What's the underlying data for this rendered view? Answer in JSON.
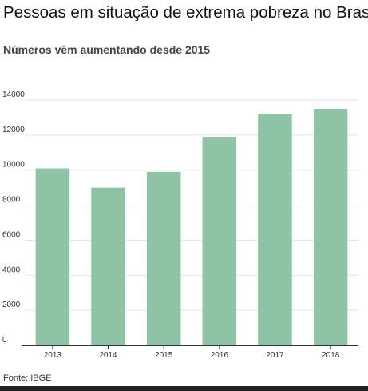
{
  "title": "Pessoas em situação de extrema pobreza no Brasil",
  "subtitle": "Números vêm aumentando desde 2015",
  "source": "Fonte: IBGE",
  "colors": {
    "bar": "#8fc3a6",
    "grid": "#e3e3e3",
    "axis": "#333333"
  },
  "chart_data": {
    "type": "bar",
    "categories": [
      "2013",
      "2014",
      "2015",
      "2016",
      "2017",
      "2018"
    ],
    "values": [
      10100,
      9000,
      9900,
      11900,
      13200,
      13500
    ],
    "ylim": [
      0,
      14000
    ],
    "yticks": [
      0,
      2000,
      4000,
      6000,
      8000,
      10000,
      12000,
      14000
    ],
    "grid": true,
    "legend": "none"
  }
}
